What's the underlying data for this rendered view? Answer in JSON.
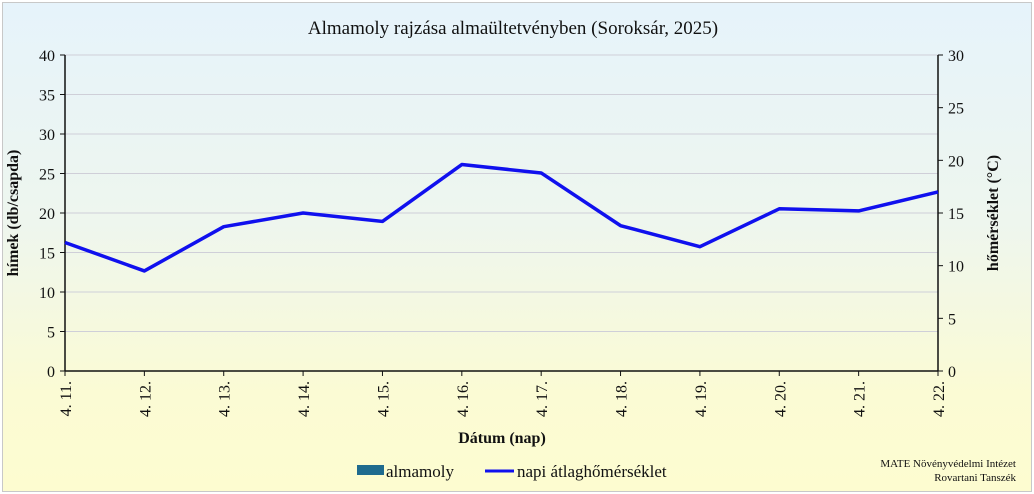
{
  "chart_data": {
    "type": "line",
    "title": "Almamoly rajzása almaültetvényben (Soroksár, 2025)",
    "xlabel": "Dátum (nap)",
    "ylabel": "hímek (db/csapda)",
    "y2label": "hőmérséklet (°C)",
    "categories": [
      "4. 11.",
      "4. 12.",
      "4. 13.",
      "4. 14.",
      "4. 15.",
      "4. 16.",
      "4. 17.",
      "4. 18.",
      "4. 19.",
      "4. 20.",
      "4. 21.",
      "4. 22."
    ],
    "ylim": [
      0,
      40
    ],
    "y2lim": [
      0,
      30
    ],
    "yticks": [
      0,
      5,
      10,
      15,
      20,
      25,
      30,
      35,
      40
    ],
    "y2ticks": [
      0,
      5,
      10,
      15,
      20,
      25,
      30
    ],
    "grid": true,
    "legend_position": "bottom",
    "series": [
      {
        "name": "almamoly",
        "type": "bar",
        "axis": "left",
        "color": "#1f6b8e",
        "values": [
          0,
          0,
          0,
          0,
          0,
          0,
          0,
          0,
          0,
          0,
          0,
          0
        ]
      },
      {
        "name": "napi átlaghőmérséklet",
        "type": "line",
        "axis": "right",
        "color": "#1010ee",
        "values": [
          12.2,
          9.5,
          13.7,
          15.0,
          14.2,
          19.6,
          18.8,
          13.8,
          11.8,
          15.4,
          15.2,
          17.0
        ]
      }
    ]
  },
  "credit": {
    "line1": "MATE Növényvédelmi Intézet",
    "line2": "Rovartani Tanszék"
  }
}
